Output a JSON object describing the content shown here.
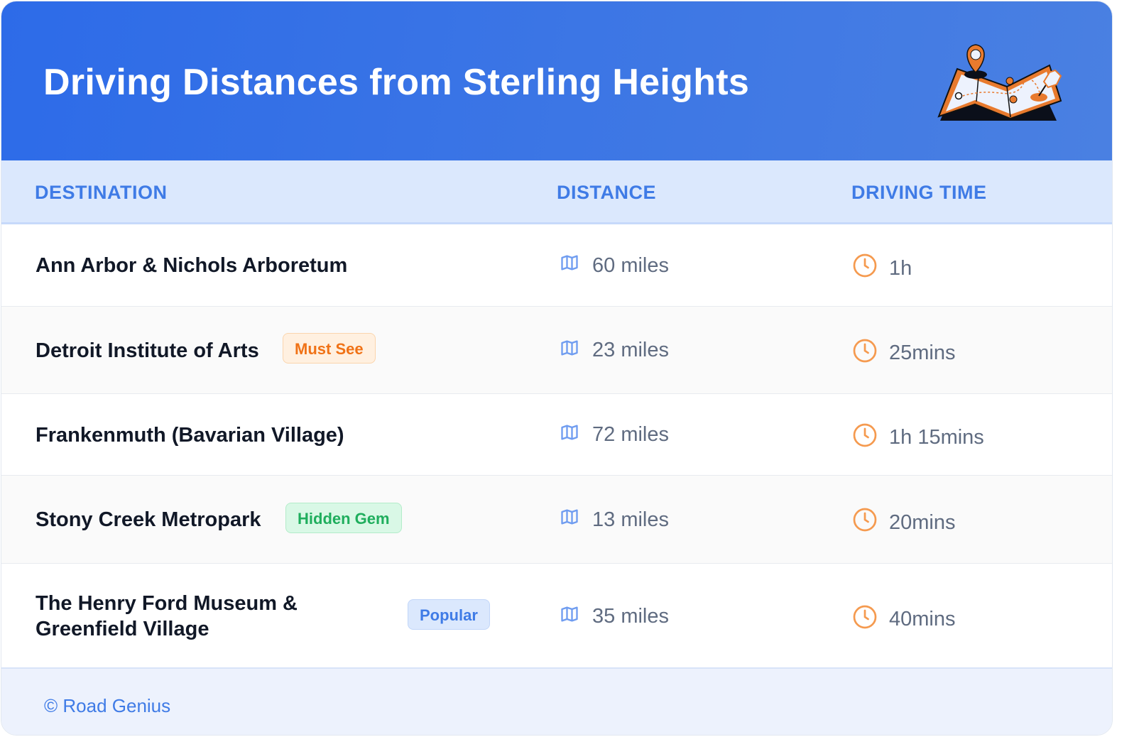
{
  "header": {
    "title": "Driving Distances from Sterling Heights",
    "illustration": "folded-map-with-pins"
  },
  "columns": {
    "destination": "DESTINATION",
    "distance": "DISTANCE",
    "time": "DRIVING TIME"
  },
  "rows": [
    {
      "destination": "Ann Arbor & Nichols Arboretum",
      "badge": null,
      "distance": "60 miles",
      "time": "1h"
    },
    {
      "destination": "Detroit Institute of Arts",
      "badge": "Must See",
      "distance": "23 miles",
      "time": "25mins"
    },
    {
      "destination": "Frankenmuth (Bavarian Village)",
      "badge": null,
      "distance": "72 miles",
      "time": "1h 15mins"
    },
    {
      "destination": "Stony Creek Metropark",
      "badge": "Hidden Gem",
      "distance": "13 miles",
      "time": "20mins"
    },
    {
      "destination": "The Henry Ford Museum & Greenfield Village",
      "badge": "Popular",
      "distance": "35 miles",
      "time": "40mins"
    }
  ],
  "footer": {
    "credit": "© Road Genius"
  },
  "colors": {
    "header": "#2d6be8",
    "accent": "#3f7be6",
    "map_icon": "#6f9cf0",
    "clock_icon": "#f59a4f"
  }
}
